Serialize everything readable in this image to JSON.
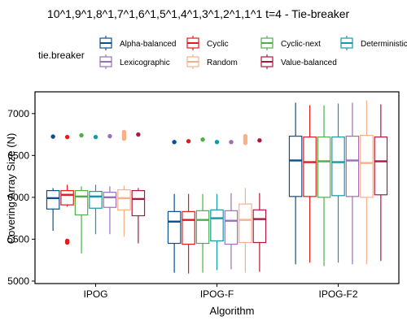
{
  "chart_data": {
    "type": "boxplot",
    "title": "10^1,9^1,8^1,7^1,6^1,5^1,4^1,3^1,2^1,1^1 t=4 - Tie-breaker",
    "xlabel": "Algorithm",
    "ylabel": "Covering Array Size (N)",
    "ylim": [
      4970,
      7260
    ],
    "yticks": [
      5000,
      5500,
      6000,
      6500,
      7000
    ],
    "grid": false,
    "legend": {
      "title": "tie.breaker",
      "placement": "top"
    },
    "categories": [
      "IPOG",
      "IPOG-F",
      "IPOG-F2"
    ],
    "series": [
      {
        "name": "Alpha-balanced",
        "color": "#0b4f8c",
        "boxes": [
          {
            "min": 5600,
            "q1": 5860,
            "median": 5990,
            "q3": 6080,
            "max": 6110,
            "outliers": [
              6725
            ]
          },
          {
            "min": 5100,
            "q1": 5450,
            "median": 5710,
            "q3": 5830,
            "max": 6040,
            "outliers": [
              6660
            ]
          },
          {
            "min": 5200,
            "q1": 6010,
            "median": 6440,
            "q3": 6730,
            "max": 7130,
            "outliers": []
          }
        ]
      },
      {
        "name": "Cyclic",
        "color": "#e41a1c",
        "boxes": [
          {
            "min": 5890,
            "q1": 5910,
            "median": 6030,
            "q3": 6080,
            "max": 6150,
            "outliers": [
              5460,
              5480,
              6720
            ]
          },
          {
            "min": 5090,
            "q1": 5440,
            "median": 5730,
            "q3": 5830,
            "max": 6040,
            "outliers": [
              6670
            ]
          },
          {
            "min": 5220,
            "q1": 6010,
            "median": 6420,
            "q3": 6720,
            "max": 7100,
            "outliers": []
          }
        ]
      },
      {
        "name": "Cyclic-next",
        "color": "#4daf4a",
        "boxes": [
          {
            "min": 5330,
            "q1": 5790,
            "median": 6010,
            "q3": 6080,
            "max": 6130,
            "outliers": [
              6740
            ]
          },
          {
            "min": 5100,
            "q1": 5450,
            "median": 5730,
            "q3": 5840,
            "max": 6040,
            "outliers": [
              6690
            ]
          },
          {
            "min": 5180,
            "q1": 6000,
            "median": 6430,
            "q3": 6720,
            "max": 7100,
            "outliers": []
          }
        ]
      },
      {
        "name": "Deterministic",
        "color": "#1598a8",
        "boxes": [
          {
            "min": 5560,
            "q1": 5870,
            "median": 6010,
            "q3": 6070,
            "max": 6150,
            "outliers": [
              6720
            ]
          },
          {
            "min": 5130,
            "q1": 5480,
            "median": 5750,
            "q3": 5850,
            "max": 6040,
            "outliers": [
              6660
            ]
          },
          {
            "min": 5220,
            "q1": 6020,
            "median": 6420,
            "q3": 6720,
            "max": 7120,
            "outliers": []
          }
        ]
      },
      {
        "name": "Lexicographic",
        "color": "#9b6fb6",
        "boxes": [
          {
            "min": 5560,
            "q1": 5880,
            "median": 6000,
            "q3": 6060,
            "max": 6130,
            "outliers": [
              6730
            ]
          },
          {
            "min": 5140,
            "q1": 5440,
            "median": 5720,
            "q3": 5840,
            "max": 6050,
            "outliers": [
              6660
            ]
          },
          {
            "min": 5200,
            "q1": 6010,
            "median": 6440,
            "q3": 6730,
            "max": 7130,
            "outliers": []
          }
        ]
      },
      {
        "name": "Random",
        "color": "#f7b08a",
        "boxes": [
          {
            "min": 5530,
            "q1": 5850,
            "median": 5990,
            "q3": 6090,
            "max": 6140,
            "outliers": [
              6700,
              6720,
              6740,
              6760,
              6780
            ]
          },
          {
            "min": 5100,
            "q1": 5460,
            "median": 5730,
            "q3": 5920,
            "max": 6110,
            "outliers": [
              6650,
              6670,
              6690,
              6710,
              6730
            ]
          },
          {
            "min": 5200,
            "q1": 6000,
            "median": 6410,
            "q3": 6740,
            "max": 7160,
            "outliers": []
          }
        ]
      },
      {
        "name": "Value-balanced",
        "color": "#b0173e",
        "boxes": [
          {
            "min": 5450,
            "q1": 5780,
            "median": 5980,
            "q3": 6080,
            "max": 6110,
            "outliers": [
              6750
            ]
          },
          {
            "min": 5110,
            "q1": 5460,
            "median": 5740,
            "q3": 5850,
            "max": 6050,
            "outliers": [
              6680
            ]
          },
          {
            "min": 5240,
            "q1": 6030,
            "median": 6430,
            "q3": 6720,
            "max": 7110,
            "outliers": []
          }
        ]
      }
    ]
  }
}
